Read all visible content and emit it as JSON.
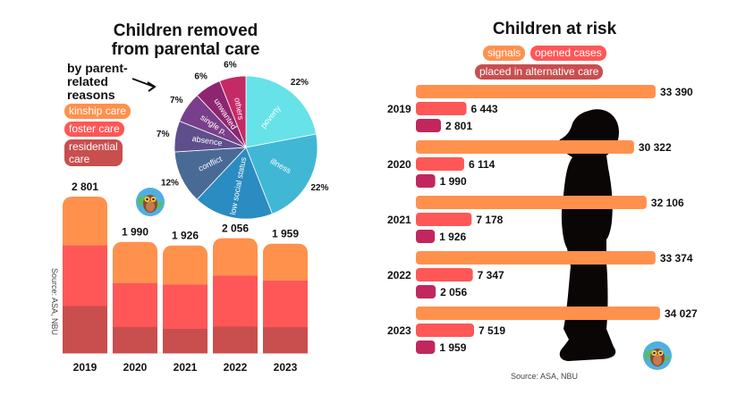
{
  "colors": {
    "kinship": "#FF914D",
    "foster": "#FF5757",
    "residential": "#C94E4E",
    "signals": "#FF914D",
    "opened": "#FF5757",
    "placed": "#C1275E",
    "pie": [
      "#67E2E8",
      "#41B7D6",
      "#2A8CC0",
      "#4A6A96",
      "#5E4F8C",
      "#7A3F8A",
      "#8E2570",
      "#C42A66"
    ]
  },
  "left": {
    "title_line1": "Children removed",
    "title_line2": "from parental care",
    "subtitle_line1": "by parent-",
    "subtitle_line2": "related",
    "subtitle_line3": "reasons",
    "legend": [
      "kinship care",
      "foster care",
      "residential care"
    ],
    "source": "Source: ASA, NBU",
    "owl_icon": "owl-logo-icon"
  },
  "right": {
    "title": "Children at risk",
    "legend": [
      "signals",
      "opened cases",
      "placed in alternative care"
    ],
    "source": "Source: ASA, NBU",
    "owl_icon": "owl-logo-icon"
  },
  "chart_data": [
    {
      "type": "pie",
      "title": "Children removed from parental care by parent-related reasons",
      "categories": [
        "poverty",
        "illness",
        "low social status",
        "conflict",
        "absence",
        "single p.",
        "unwanted",
        "others"
      ],
      "values": [
        22,
        22,
        18,
        12,
        7,
        7,
        6,
        6
      ],
      "value_labels": [
        "22%",
        "22%",
        "18%",
        "12%",
        "7%",
        "7%",
        "6%",
        "6%"
      ],
      "unit": "%"
    },
    {
      "type": "bar",
      "stacked": true,
      "title": "Children removed from parental care",
      "categories": [
        "2019",
        "2020",
        "2021",
        "2022",
        "2023"
      ],
      "totals": [
        2801,
        1990,
        1926,
        2056,
        1959
      ],
      "total_labels": [
        "2 801",
        "1 990",
        "1 926",
        "2 056",
        "1 959"
      ],
      "series": [
        {
          "name": "residential care",
          "values": [
            850,
            475,
            440,
            480,
            470
          ]
        },
        {
          "name": "foster care",
          "values": [
            1080,
            780,
            790,
            910,
            830
          ]
        },
        {
          "name": "kinship care",
          "values": [
            871,
            735,
            696,
            666,
            659
          ]
        }
      ],
      "note": "segment values estimated from bar proportions; totals labeled",
      "legend": "left"
    },
    {
      "type": "bar",
      "orientation": "horizontal",
      "title": "Children at risk",
      "categories": [
        "2019",
        "2020",
        "2021",
        "2022",
        "2023"
      ],
      "series": [
        {
          "name": "signals",
          "values": [
            33390,
            30322,
            32106,
            33374,
            34027
          ],
          "labels": [
            "33 390",
            "30 322",
            "32 106",
            "33 374",
            "34 027"
          ]
        },
        {
          "name": "opened cases",
          "values": [
            6443,
            6114,
            7178,
            7347,
            7519
          ],
          "labels": [
            "6 443",
            "6 114",
            "7 178",
            "7 347",
            "7 519"
          ]
        },
        {
          "name": "placed in alternative care",
          "values": [
            2801,
            1990,
            1926,
            2056,
            1959
          ],
          "labels": [
            "2 801",
            "1 990",
            "1 926",
            "2 056",
            "1 959"
          ]
        }
      ],
      "legend": "top"
    }
  ]
}
